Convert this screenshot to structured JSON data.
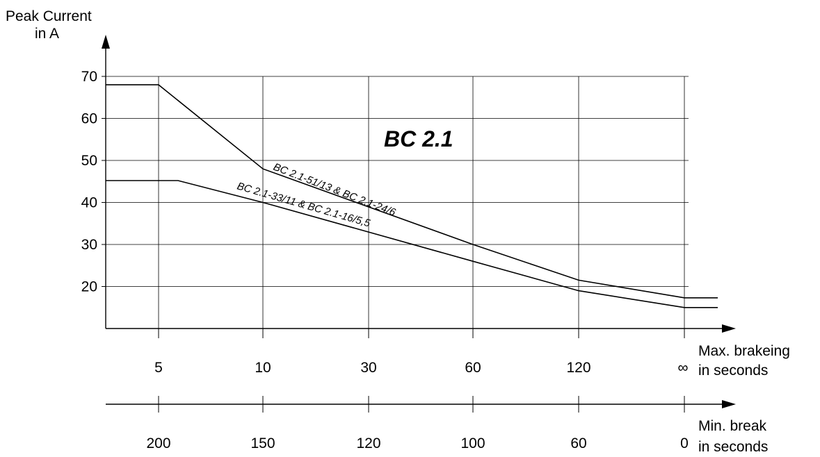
{
  "chart_data": {
    "type": "line",
    "title": "BC 2.1",
    "ylabel_line1": "Peak Current",
    "ylabel_line2": "in A",
    "xlabel_top_line1": "Max. brakeing",
    "xlabel_top_line2": "in seconds",
    "xlabel_bottom_line1": "Min. break",
    "xlabel_bottom_line2": "in seconds",
    "yticks": [
      20,
      30,
      40,
      50,
      60,
      70
    ],
    "ylim": [
      10,
      72
    ],
    "xticks_max_braking": [
      "5",
      "10",
      "30",
      "60",
      "120",
      "∞"
    ],
    "xticks_min_break": [
      "200",
      "150",
      "120",
      "100",
      "60",
      "0"
    ],
    "grid": true,
    "series": [
      {
        "name": "BC 2.1-51/13 & BC 2.1-24/6",
        "x": [
          "start",
          "5",
          "10",
          "60",
          "120",
          "∞",
          "end"
        ],
        "values": [
          68,
          68,
          48,
          30,
          21.5,
          17.3,
          17.3
        ]
      },
      {
        "name": "BC 2.1-33/11 & BC 2.1-16/5,5",
        "x": [
          "start",
          "5",
          "10",
          "60",
          "120",
          "∞",
          "end"
        ],
        "values": [
          45.2,
          45.2,
          40,
          26,
          19,
          15,
          15
        ]
      }
    ]
  }
}
